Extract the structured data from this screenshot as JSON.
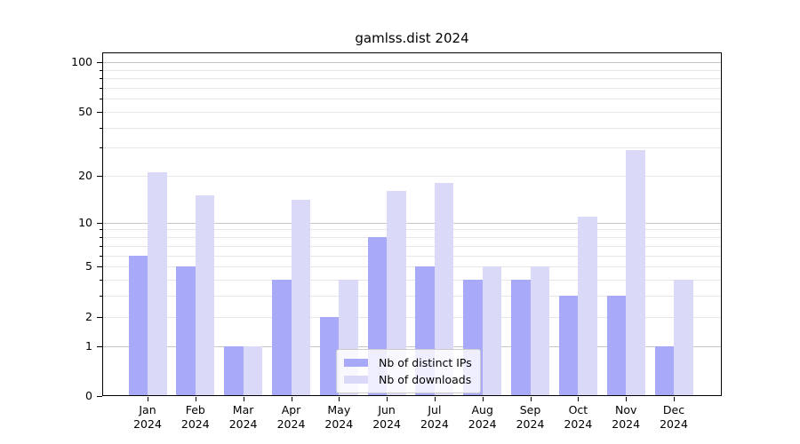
{
  "chart_data": {
    "type": "bar",
    "title": "gamlss.dist 2024",
    "categories": [
      "Jan",
      "Feb",
      "Mar",
      "Apr",
      "May",
      "Jun",
      "Jul",
      "Aug",
      "Sep",
      "Oct",
      "Nov",
      "Dec"
    ],
    "year_label": "2024",
    "series": [
      {
        "name": "Nb of distinct IPs",
        "color": "#a9a9f9",
        "values": [
          6,
          5,
          1,
          4,
          2,
          8,
          5,
          4,
          4,
          3,
          3,
          1
        ]
      },
      {
        "name": "Nb of downloads",
        "color": "#dadaf8",
        "values": [
          21,
          15,
          1,
          14,
          4,
          16,
          18,
          5,
          5,
          11,
          29,
          4
        ]
      }
    ],
    "yscale": "log(1+y)",
    "ytick_values": [
      0,
      1,
      2,
      5,
      10,
      20,
      50,
      100
    ],
    "ytick_labels": [
      "0",
      "1",
      "2",
      "5",
      "10",
      "20",
      "50",
      "100"
    ],
    "major_grid_values": [
      1,
      10,
      100
    ],
    "minor_grid_values": [
      2,
      3,
      4,
      5,
      6,
      7,
      8,
      9,
      20,
      30,
      40,
      50,
      60,
      70,
      80,
      90
    ],
    "minor_tick_values": [
      3,
      4,
      6,
      7,
      8,
      9,
      30,
      40,
      60,
      70,
      80,
      90
    ],
    "ylim": [
      0,
      115
    ],
    "grid": "on",
    "legend_position": "lower-center-inside",
    "colors": {
      "major_grid": "#c6c6c6",
      "minor_grid": "#e7e7e7",
      "axis": "#000000",
      "text": "#000000",
      "background": "#ffffff",
      "legend_bg": "rgba(255,255,255,0.8)",
      "legend_border": "#cccccc"
    }
  }
}
